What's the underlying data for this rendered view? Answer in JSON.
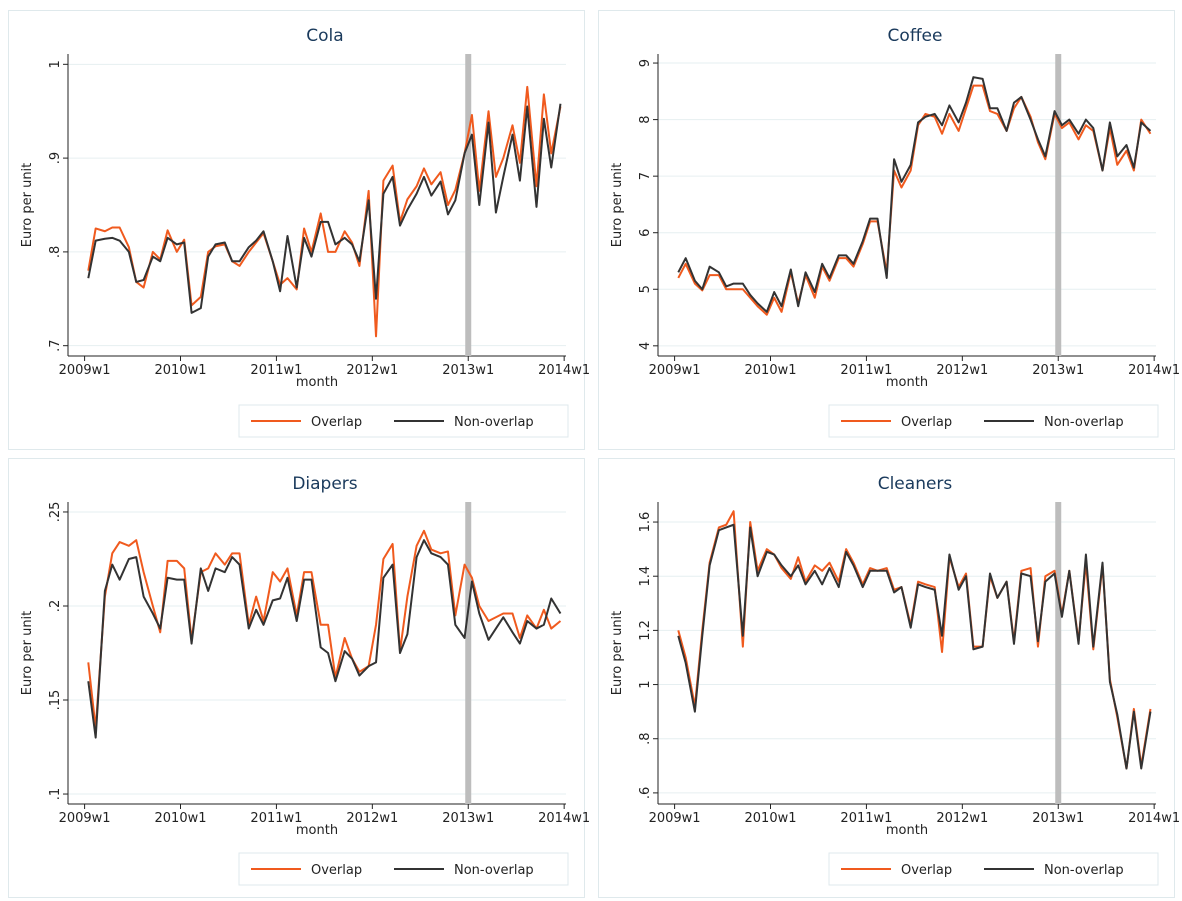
{
  "chart_data": [
    {
      "type": "line",
      "title": "Cola",
      "xlabel": "month",
      "ylabel": "Euro per unit",
      "x": [
        2550,
        2554,
        2559,
        2563,
        2567,
        2572,
        2576,
        2580,
        2585,
        2589,
        2593,
        2598,
        2602,
        2606,
        2611,
        2615,
        2619,
        2624,
        2628,
        2632,
        2637,
        2641,
        2645,
        2650,
        2654,
        2658,
        2663,
        2667,
        2671,
        2676,
        2680,
        2684,
        2689,
        2693,
        2697,
        2702,
        2706,
        2710,
        2715,
        2719,
        2723,
        2728,
        2732,
        2736,
        2741,
        2745,
        2749,
        2754,
        2758,
        2762,
        2767,
        2771,
        2775,
        2780,
        2784,
        2788,
        2793,
        2797,
        2801,
        2806
      ],
      "xlim": [
        2539,
        2809
      ],
      "xticks": [
        {
          "value": 2548,
          "label": "2009w1"
        },
        {
          "value": 2600,
          "label": "2010w1"
        },
        {
          "value": 2652,
          "label": "2011w1"
        },
        {
          "value": 2704,
          "label": "2012w1"
        },
        {
          "value": 2756,
          "label": "2013w1"
        },
        {
          "value": 2808,
          "label": "2014w1"
        }
      ],
      "ylim": [
        0.689,
        1.011
      ],
      "yticks": [
        {
          "value": 0.7,
          "label": ".7"
        },
        {
          "value": 0.8,
          "label": ".8"
        },
        {
          "value": 0.9,
          "label": ".9"
        },
        1
      ],
      "grid": true,
      "vline": 2756,
      "legend": "bottom-right",
      "series": [
        {
          "name": "Overlap",
          "color": "#f05a1e",
          "values": [
            0.78,
            0.825,
            0.822,
            0.826,
            0.826,
            0.805,
            0.768,
            0.762,
            0.8,
            0.792,
            0.823,
            0.8,
            0.813,
            0.743,
            0.752,
            0.8,
            0.806,
            0.808,
            0.79,
            0.785,
            0.8,
            0.81,
            0.82,
            0.79,
            0.765,
            0.772,
            0.76,
            0.825,
            0.8,
            0.841,
            0.8,
            0.8,
            0.822,
            0.81,
            0.785,
            0.865,
            0.71,
            0.876,
            0.892,
            0.832,
            0.856,
            0.87,
            0.889,
            0.872,
            0.885,
            0.85,
            0.866,
            0.905,
            0.946,
            0.865,
            0.95,
            0.88,
            0.9,
            0.935,
            0.895,
            0.976,
            0.87,
            0.968,
            0.905,
            0.955
          ]
        },
        {
          "name": "Non-overlap",
          "color": "#333333",
          "values": [
            0.772,
            0.812,
            0.814,
            0.815,
            0.812,
            0.8,
            0.768,
            0.77,
            0.795,
            0.79,
            0.815,
            0.808,
            0.81,
            0.735,
            0.74,
            0.795,
            0.808,
            0.81,
            0.79,
            0.79,
            0.805,
            0.812,
            0.822,
            0.79,
            0.758,
            0.817,
            0.762,
            0.815,
            0.795,
            0.832,
            0.832,
            0.808,
            0.815,
            0.808,
            0.79,
            0.855,
            0.75,
            0.862,
            0.88,
            0.828,
            0.845,
            0.862,
            0.88,
            0.86,
            0.875,
            0.84,
            0.855,
            0.905,
            0.925,
            0.85,
            0.938,
            0.842,
            0.88,
            0.925,
            0.876,
            0.955,
            0.848,
            0.942,
            0.89,
            0.958
          ]
        }
      ]
    },
    {
      "type": "line",
      "title": "Coffee",
      "xlabel": "month",
      "ylabel": "Euro per unit",
      "x": [
        2550,
        2554,
        2559,
        2563,
        2567,
        2572,
        2576,
        2580,
        2585,
        2589,
        2593,
        2598,
        2602,
        2606,
        2611,
        2615,
        2619,
        2624,
        2628,
        2632,
        2637,
        2641,
        2645,
        2650,
        2654,
        2658,
        2663,
        2667,
        2671,
        2676,
        2680,
        2684,
        2689,
        2693,
        2697,
        2702,
        2706,
        2710,
        2715,
        2719,
        2723,
        2728,
        2732,
        2736,
        2741,
        2745,
        2749,
        2754,
        2758,
        2762,
        2767,
        2771,
        2775,
        2780,
        2784,
        2788,
        2793,
        2797,
        2801,
        2806
      ],
      "xlim": [
        2539,
        2809
      ],
      "xticks": [
        {
          "value": 2548,
          "label": "2009w1"
        },
        {
          "value": 2600,
          "label": "2010w1"
        },
        {
          "value": 2652,
          "label": "2011w1"
        },
        {
          "value": 2704,
          "label": "2012w1"
        },
        {
          "value": 2756,
          "label": "2013w1"
        },
        {
          "value": 2808,
          "label": "2014w1"
        }
      ],
      "ylim": [
        3.82,
        9.16
      ],
      "yticks": [
        4,
        5,
        6,
        7,
        8,
        9
      ],
      "grid": true,
      "vline": 2756,
      "legend": "bottom-right",
      "series": [
        {
          "name": "Overlap",
          "color": "#f05a1e",
          "values": [
            5.2,
            5.45,
            5.1,
            4.98,
            5.25,
            5.25,
            5.0,
            5.0,
            5.0,
            4.85,
            4.7,
            4.55,
            4.85,
            4.6,
            5.3,
            4.75,
            5.25,
            4.85,
            5.4,
            5.15,
            5.55,
            5.55,
            5.4,
            5.8,
            6.2,
            6.2,
            5.3,
            7.1,
            6.8,
            7.1,
            7.9,
            8.1,
            8.05,
            7.75,
            8.1,
            7.8,
            8.2,
            8.6,
            8.6,
            8.15,
            8.1,
            7.8,
            8.2,
            8.4,
            8.05,
            7.6,
            7.3,
            8.1,
            7.85,
            7.95,
            7.65,
            7.9,
            7.8,
            7.1,
            7.85,
            7.2,
            7.45,
            7.1,
            8.0,
            7.75
          ]
        },
        {
          "name": "Non-overlap",
          "color": "#333333",
          "values": [
            5.3,
            5.55,
            5.15,
            5.0,
            5.4,
            5.3,
            5.05,
            5.1,
            5.1,
            4.9,
            4.75,
            4.6,
            4.95,
            4.7,
            5.35,
            4.7,
            5.3,
            4.95,
            5.45,
            5.2,
            5.6,
            5.6,
            5.45,
            5.85,
            6.25,
            6.25,
            5.2,
            7.3,
            6.9,
            7.2,
            7.95,
            8.05,
            8.1,
            7.9,
            8.25,
            7.95,
            8.3,
            8.75,
            8.72,
            8.2,
            8.2,
            7.8,
            8.3,
            8.4,
            8.0,
            7.65,
            7.35,
            8.15,
            7.9,
            8.0,
            7.75,
            8.0,
            7.85,
            7.1,
            7.95,
            7.35,
            7.55,
            7.15,
            7.95,
            7.8
          ]
        }
      ]
    },
    {
      "type": "line",
      "title": "Diapers",
      "xlabel": "month",
      "ylabel": "Euro per unit",
      "x": [
        2550,
        2554,
        2559,
        2563,
        2567,
        2572,
        2576,
        2580,
        2585,
        2589,
        2593,
        2598,
        2602,
        2606,
        2611,
        2615,
        2619,
        2624,
        2628,
        2632,
        2637,
        2641,
        2645,
        2650,
        2654,
        2658,
        2663,
        2667,
        2671,
        2676,
        2680,
        2684,
        2689,
        2693,
        2697,
        2702,
        2706,
        2710,
        2715,
        2719,
        2723,
        2728,
        2732,
        2736,
        2741,
        2745,
        2749,
        2754,
        2758,
        2762,
        2767,
        2771,
        2775,
        2780,
        2784,
        2788,
        2793,
        2797,
        2801,
        2806
      ],
      "xlim": [
        2539,
        2809
      ],
      "xticks": [
        {
          "value": 2548,
          "label": "2009w1"
        },
        {
          "value": 2600,
          "label": "2010w1"
        },
        {
          "value": 2652,
          "label": "2011w1"
        },
        {
          "value": 2704,
          "label": "2012w1"
        },
        {
          "value": 2756,
          "label": "2013w1"
        },
        {
          "value": 2808,
          "label": "2014w1"
        }
      ],
      "ylim": [
        0.0947,
        0.2553
      ],
      "yticks": [
        {
          "value": 0.1,
          "label": ".1"
        },
        {
          "value": 0.15,
          "label": ".15"
        },
        {
          "value": 0.2,
          "label": ".2"
        },
        {
          "value": 0.25,
          "label": ".25"
        }
      ],
      "grid": true,
      "vline": 2756,
      "legend": "bottom-right",
      "series": [
        {
          "name": "Overlap",
          "color": "#f05a1e",
          "values": [
            0.17,
            0.135,
            0.205,
            0.228,
            0.234,
            0.232,
            0.235,
            0.218,
            0.2,
            0.186,
            0.224,
            0.224,
            0.22,
            0.182,
            0.218,
            0.22,
            0.228,
            0.222,
            0.228,
            0.228,
            0.19,
            0.205,
            0.192,
            0.218,
            0.213,
            0.22,
            0.195,
            0.218,
            0.218,
            0.19,
            0.19,
            0.162,
            0.183,
            0.172,
            0.165,
            0.168,
            0.19,
            0.225,
            0.233,
            0.176,
            0.205,
            0.232,
            0.24,
            0.23,
            0.228,
            0.229,
            0.195,
            0.222,
            0.215,
            0.2,
            0.192,
            0.194,
            0.196,
            0.196,
            0.183,
            0.195,
            0.188,
            0.198,
            0.188,
            0.192
          ]
        },
        {
          "name": "Non-overlap",
          "color": "#333333",
          "values": [
            0.16,
            0.13,
            0.208,
            0.222,
            0.214,
            0.225,
            0.226,
            0.205,
            0.196,
            0.188,
            0.215,
            0.214,
            0.214,
            0.18,
            0.22,
            0.208,
            0.22,
            0.218,
            0.226,
            0.222,
            0.188,
            0.198,
            0.19,
            0.203,
            0.204,
            0.215,
            0.192,
            0.214,
            0.214,
            0.178,
            0.175,
            0.16,
            0.176,
            0.172,
            0.163,
            0.168,
            0.17,
            0.215,
            0.222,
            0.175,
            0.185,
            0.226,
            0.235,
            0.228,
            0.226,
            0.222,
            0.19,
            0.183,
            0.213,
            0.196,
            0.182,
            0.188,
            0.194,
            0.186,
            0.18,
            0.192,
            0.188,
            0.19,
            0.204,
            0.196
          ]
        }
      ]
    },
    {
      "type": "line",
      "title": "Cleaners",
      "xlabel": "month",
      "ylabel": "Euro per unit",
      "x": [
        2550,
        2554,
        2559,
        2563,
        2567,
        2572,
        2576,
        2580,
        2585,
        2589,
        2593,
        2598,
        2602,
        2606,
        2611,
        2615,
        2619,
        2624,
        2628,
        2632,
        2637,
        2641,
        2645,
        2650,
        2654,
        2658,
        2663,
        2667,
        2671,
        2676,
        2680,
        2684,
        2689,
        2693,
        2697,
        2702,
        2706,
        2710,
        2715,
        2719,
        2723,
        2728,
        2732,
        2736,
        2741,
        2745,
        2749,
        2754,
        2758,
        2762,
        2767,
        2771,
        2775,
        2780,
        2784,
        2788,
        2793,
        2797,
        2801,
        2806
      ],
      "xlim": [
        2539,
        2809
      ],
      "xticks": [
        {
          "value": 2548,
          "label": "2009w1"
        },
        {
          "value": 2600,
          "label": "2010w1"
        },
        {
          "value": 2652,
          "label": "2011w1"
        },
        {
          "value": 2704,
          "label": "2012w1"
        },
        {
          "value": 2756,
          "label": "2013w1"
        },
        {
          "value": 2808,
          "label": "2014w1"
        }
      ],
      "ylim": [
        0.559,
        1.674
      ],
      "yticks": [
        {
          "value": 0.6,
          "label": ".6"
        },
        {
          "value": 0.8,
          "label": ".8"
        },
        1,
        1.2,
        1.4,
        1.6
      ],
      "grid": true,
      "vline": 2756,
      "legend": "bottom-right",
      "series": [
        {
          "name": "Overlap",
          "color": "#f05a1e",
          "values": [
            1.2,
            1.1,
            0.92,
            1.2,
            1.45,
            1.58,
            1.59,
            1.64,
            1.14,
            1.6,
            1.42,
            1.5,
            1.48,
            1.43,
            1.39,
            1.47,
            1.38,
            1.44,
            1.42,
            1.45,
            1.38,
            1.5,
            1.45,
            1.37,
            1.43,
            1.42,
            1.43,
            1.35,
            1.36,
            1.22,
            1.38,
            1.37,
            1.36,
            1.12,
            1.47,
            1.36,
            1.41,
            1.14,
            1.14,
            1.4,
            1.32,
            1.38,
            1.16,
            1.42,
            1.43,
            1.14,
            1.4,
            1.42,
            1.26,
            1.42,
            1.16,
            1.45,
            1.13,
            1.44,
            1.02,
            0.88,
            0.69,
            0.91,
            0.7,
            0.91
          ]
        },
        {
          "name": "Non-overlap",
          "color": "#333333",
          "values": [
            1.18,
            1.08,
            0.9,
            1.18,
            1.44,
            1.57,
            1.58,
            1.59,
            1.18,
            1.58,
            1.4,
            1.49,
            1.48,
            1.44,
            1.4,
            1.44,
            1.37,
            1.42,
            1.37,
            1.43,
            1.36,
            1.49,
            1.44,
            1.36,
            1.42,
            1.42,
            1.42,
            1.34,
            1.36,
            1.21,
            1.37,
            1.36,
            1.35,
            1.18,
            1.48,
            1.35,
            1.4,
            1.13,
            1.14,
            1.41,
            1.32,
            1.38,
            1.15,
            1.41,
            1.4,
            1.16,
            1.38,
            1.41,
            1.25,
            1.42,
            1.15,
            1.48,
            1.14,
            1.45,
            1.01,
            0.89,
            0.69,
            0.9,
            0.69,
            0.9
          ]
        }
      ]
    }
  ]
}
